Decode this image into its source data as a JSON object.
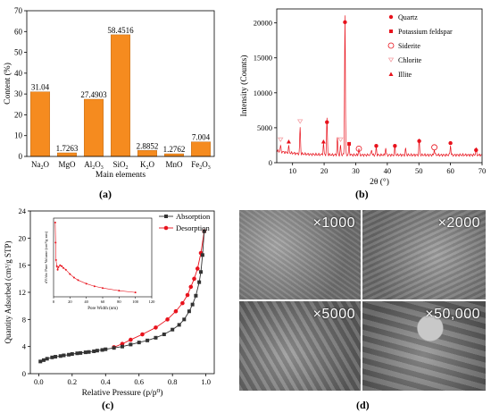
{
  "panels": {
    "a": "(a)",
    "b": "(b)",
    "c": "(c)",
    "d": "(d)"
  },
  "colors": {
    "bar": "#f58b1f",
    "xrd": "#e8121c",
    "absorption": "#333333",
    "desorption": "#e8121c"
  },
  "sem": {
    "tiles": [
      {
        "label": "×1000"
      },
      {
        "label": "×2000"
      },
      {
        "label": "×5000"
      },
      {
        "label": "×50,000"
      }
    ]
  },
  "chart_data": [
    {
      "id": "a",
      "type": "bar",
      "ylabel": "Content (%)",
      "xlabel": "Main elements",
      "ylim": [
        0,
        70
      ],
      "yticks": [
        0,
        10,
        20,
        30,
        40,
        50,
        60,
        70
      ],
      "categories": [
        {
          "base": "Na",
          "sub": "2",
          "rest": "O"
        },
        {
          "base": "MgO",
          "sub": "",
          "rest": ""
        },
        {
          "base": "Al",
          "sub": "2",
          "rest": "O",
          "sub2": "3"
        },
        {
          "base": "SiO",
          "sub": "2",
          "rest": ""
        },
        {
          "base": "K",
          "sub": "2",
          "rest": "O"
        },
        {
          "base": "MnO",
          "sub": "",
          "rest": ""
        },
        {
          "base": "Fe",
          "sub": "2",
          "rest": "O",
          "sub2": "3"
        }
      ],
      "values": [
        31.04,
        1.7263,
        27.4903,
        58.4516,
        2.8852,
        1.2762,
        7.004
      ],
      "labels": [
        "31.04",
        "1.7263",
        "27.4903",
        "58.4516",
        "2.8852",
        "1.2762",
        "7.004"
      ]
    },
    {
      "id": "b",
      "type": "line",
      "xlabel": "2θ (°)",
      "ylabel": "Intensity (Counts)",
      "xlim": [
        5,
        70
      ],
      "ylim": [
        0,
        22000
      ],
      "xticks": [
        10,
        20,
        30,
        40,
        50,
        60,
        70
      ],
      "yticks": [
        0,
        5000,
        10000,
        15000,
        20000
      ],
      "legend": [
        "Quartz",
        "Potassium feldspar",
        "Siderite",
        "Chlorite",
        "Illite"
      ],
      "legend_position": "top-right",
      "peaks": [
        [
          6.2,
          800
        ],
        [
          8.8,
          900
        ],
        [
          12.4,
          3800
        ],
        [
          19.8,
          1600
        ],
        [
          20.9,
          5200
        ],
        [
          24.2,
          2400
        ],
        [
          25.2,
          1300
        ],
        [
          26.6,
          20000
        ],
        [
          27.9,
          1700
        ],
        [
          31.0,
          900
        ],
        [
          35.0,
          800
        ],
        [
          36.5,
          1100
        ],
        [
          39.5,
          1000
        ],
        [
          42.4,
          1200
        ],
        [
          45.8,
          900
        ],
        [
          50.1,
          2200
        ],
        [
          54.9,
          800
        ],
        [
          60.0,
          1400
        ],
        [
          68.1,
          1000
        ]
      ],
      "markers": [
        {
          "type": "Quartz",
          "x": 26.6,
          "y": 20100
        },
        {
          "type": "Quartz",
          "x": 20.9,
          "y": 5800
        },
        {
          "type": "Quartz",
          "x": 36.5,
          "y": 2400
        },
        {
          "type": "Quartz",
          "x": 42.4,
          "y": 2400
        },
        {
          "type": "Quartz",
          "x": 50.1,
          "y": 3100
        },
        {
          "type": "Quartz",
          "x": 60.0,
          "y": 2800
        },
        {
          "type": "Quartz",
          "x": 68.1,
          "y": 1800
        },
        {
          "type": "Potassium feldspar",
          "x": 27.9,
          "y": 2700
        },
        {
          "type": "Siderite",
          "x": 31.0,
          "y": 2000
        },
        {
          "type": "Siderite",
          "x": 54.9,
          "y": 2200
        },
        {
          "type": "Chlorite",
          "x": 6.2,
          "y": 3300
        },
        {
          "type": "Chlorite",
          "x": 12.4,
          "y": 5900
        },
        {
          "type": "Chlorite",
          "x": 25.2,
          "y": 3300
        },
        {
          "type": "Illite",
          "x": 8.8,
          "y": 3000
        },
        {
          "type": "Illite",
          "x": 19.8,
          "y": 3000
        }
      ]
    },
    {
      "id": "c",
      "type": "line",
      "xlabel": "Relative Pressure (p/p⁰)",
      "ylabel": "Quantity Adsorbed (cm³/g STP)",
      "xlim": [
        -0.05,
        1.05
      ],
      "ylim": [
        0,
        24
      ],
      "xticks": [
        0.0,
        0.2,
        0.4,
        0.6,
        0.8,
        1.0
      ],
      "yticks": [
        0,
        4,
        8,
        12,
        16,
        20,
        24
      ],
      "legend_position": "top-right",
      "series": [
        {
          "name": "Absorption",
          "marker": "square",
          "x": [
            0.01,
            0.03,
            0.05,
            0.08,
            0.1,
            0.13,
            0.15,
            0.18,
            0.2,
            0.23,
            0.25,
            0.28,
            0.3,
            0.33,
            0.35,
            0.38,
            0.4,
            0.45,
            0.5,
            0.55,
            0.6,
            0.65,
            0.7,
            0.75,
            0.8,
            0.84,
            0.87,
            0.9,
            0.92,
            0.94,
            0.96,
            0.97,
            0.98,
            0.99
          ],
          "y": [
            1.8,
            2.0,
            2.2,
            2.4,
            2.5,
            2.6,
            2.7,
            2.8,
            2.9,
            3.0,
            3.05,
            3.15,
            3.2,
            3.3,
            3.4,
            3.5,
            3.6,
            3.8,
            4.0,
            4.3,
            4.6,
            4.9,
            5.3,
            5.8,
            6.5,
            7.2,
            8.0,
            9.2,
            10.2,
            11.5,
            13.5,
            15.0,
            17.5,
            21.0
          ]
        },
        {
          "name": "Desorption",
          "marker": "circle",
          "x": [
            0.99,
            0.97,
            0.95,
            0.93,
            0.91,
            0.89,
            0.86,
            0.82,
            0.77,
            0.7,
            0.62,
            0.55,
            0.5,
            0.45
          ],
          "y": [
            21.0,
            17.8,
            15.5,
            14.0,
            12.8,
            11.6,
            10.4,
            9.2,
            8.0,
            6.8,
            5.8,
            5.0,
            4.4,
            3.9
          ]
        }
      ],
      "inset": {
        "xlabel": "Pore Width (nm)",
        "ylabel": "dV/dw Pore Volume (cm³/g·nm)",
        "xlim": [
          0,
          120
        ],
        "xticks": [
          0,
          20,
          40,
          60,
          80,
          100,
          120
        ],
        "ylim": [
          0,
          0.0009
        ],
        "x": [
          2,
          2.5,
          3,
          4,
          5,
          6,
          8,
          10,
          12,
          15,
          20,
          25,
          30,
          40,
          50,
          60,
          80,
          100
        ],
        "y": [
          0.00085,
          0.00062,
          0.00042,
          0.00035,
          0.00031,
          0.00034,
          0.00036,
          0.00035,
          0.00033,
          0.00031,
          0.00026,
          0.00022,
          0.00019,
          0.00015,
          0.00012,
          0.0001,
          7e-05,
          5e-05
        ]
      }
    }
  ]
}
